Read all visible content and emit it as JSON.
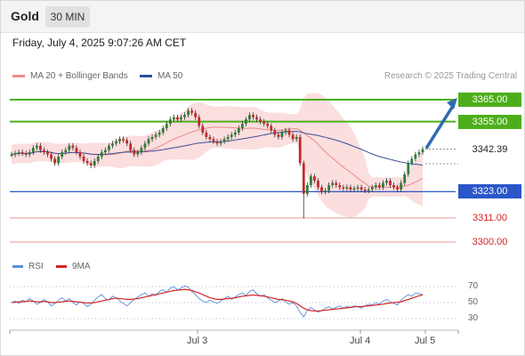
{
  "header": {
    "instrument": "Gold",
    "timeframe": "30 MIN"
  },
  "datetime": "Friday, July 4, 2025 9:07:26 AM CET",
  "legend": {
    "ma20": "MA 20 + Bollinger Bands",
    "ma50": "MA 50"
  },
  "credit": "Research © 2025 Trading Central",
  "colors": {
    "bullish": "#2e7d32",
    "bearish": "#c62828",
    "resistance": "#4caf1a",
    "support": "#2a56c8",
    "target": "#2f6ab0",
    "bollinger": "#f7c3c3",
    "ma20": "#e88a8a",
    "ma50": "#3b4f9a",
    "rsi": "#5b8fd6",
    "rsi_ma": "#d32525"
  },
  "chart_data": [
    {
      "type": "candlestick",
      "title": "Gold 30 MIN",
      "ylim": [
        3295,
        3370
      ],
      "x_ticks": [
        "Jul 3",
        "Jul 4",
        "Jul 5"
      ],
      "last_price": 3342.39,
      "levels": [
        {
          "value": 3365.0,
          "label": "3365.00",
          "kind": "resistance"
        },
        {
          "value": 3355.0,
          "label": "3355.00",
          "kind": "resistance"
        },
        {
          "value": 3342.39,
          "label": "3342.39",
          "kind": "last"
        },
        {
          "value": 3323.0,
          "label": "3323.00",
          "kind": "pivot"
        },
        {
          "value": 3311.0,
          "label": "3311.00",
          "kind": "support"
        },
        {
          "value": 3300.0,
          "label": "3300.00",
          "kind": "support"
        }
      ],
      "target_arrow": {
        "from": 3342.39,
        "to": 3365.0
      },
      "series": [
        {
          "name": "MA 20 + Bollinger Bands"
        },
        {
          "name": "MA 50"
        }
      ],
      "close": [
        3340.0,
        3340.5,
        3341.0,
        3340.5,
        3340.0,
        3341.0,
        3343.0,
        3344.0,
        3342.0,
        3341.0,
        3340.0,
        3338.0,
        3336.0,
        3339.0,
        3341.0,
        3342.0,
        3344.0,
        3343.0,
        3341.0,
        3339.0,
        3337.0,
        3336.0,
        3335.0,
        3337.0,
        3339.0,
        3341.0,
        3342.0,
        3344.0,
        3345.0,
        3346.0,
        3347.0,
        3346.5,
        3345.0,
        3342.0,
        3340.0,
        3341.0,
        3343.0,
        3345.0,
        3347.0,
        3348.0,
        3349.0,
        3350.0,
        3352.0,
        3354.0,
        3356.0,
        3357.0,
        3356.0,
        3357.0,
        3358.0,
        3360.0,
        3359.0,
        3357.0,
        3353.0,
        3350.0,
        3348.0,
        3347.0,
        3346.0,
        3345.0,
        3346.0,
        3347.0,
        3348.0,
        3349.0,
        3350.0,
        3352.0,
        3354.0,
        3356.0,
        3358.0,
        3357.0,
        3356.0,
        3355.0,
        3354.0,
        3353.0,
        3351.0,
        3349.0,
        3348.0,
        3350.0,
        3351.0,
        3349.0,
        3347.0,
        3348.0,
        3336.0,
        3322.0,
        3326.0,
        3330.0,
        3328.0,
        3325.0,
        3323.0,
        3323.5,
        3326.0,
        3327.0,
        3326.0,
        3325.0,
        3324.5,
        3325.0,
        3324.0,
        3324.5,
        3325.0,
        3324.0,
        3323.5,
        3324.0,
        3325.0,
        3326.0,
        3325.0,
        3327.0,
        3328.0,
        3326.0,
        3325.0,
        3324.0,
        3327.0,
        3331.0,
        3336.0,
        3338.0,
        3340.0,
        3341.0,
        3342.4
      ],
      "rsi_panel": {
        "series": [
          {
            "name": "RSI"
          },
          {
            "name": "9MA"
          }
        ],
        "ylim": [
          25,
          75
        ],
        "levels": [
          30,
          50,
          70
        ],
        "rsi": [
          50,
          52,
          49,
          53,
          51,
          55,
          52,
          48,
          50,
          54,
          51,
          46,
          49,
          53,
          56,
          52,
          55,
          50,
          47,
          51,
          49,
          45,
          48,
          53,
          57,
          60,
          55,
          53,
          58,
          56,
          52,
          49,
          46,
          50,
          54,
          57,
          60,
          62,
          58,
          61,
          59,
          64,
          66,
          63,
          68,
          70,
          66,
          68,
          71,
          69,
          64,
          60,
          55,
          52,
          50,
          53,
          51,
          49,
          52,
          55,
          58,
          54,
          57,
          60,
          62,
          59,
          64,
          66,
          61,
          58,
          60,
          56,
          53,
          50,
          52,
          55,
          51,
          48,
          50,
          46,
          38,
          32,
          40,
          44,
          41,
          38,
          40,
          43,
          45,
          42,
          44,
          46,
          43,
          45,
          44,
          46,
          45,
          43,
          46,
          48,
          47,
          50,
          48,
          52,
          54,
          51,
          49,
          47,
          53,
          57,
          60,
          58,
          62,
          61,
          60
        ],
        "rsi_ma": [
          50,
          50.5,
          51,
          51,
          51.5,
          52,
          51.5,
          51,
          51,
          51.5,
          51,
          50,
          50,
          50.5,
          51,
          51.5,
          52,
          51.5,
          51,
          50.5,
          50,
          49.5,
          49.5,
          50,
          51,
          52,
          53,
          54,
          55,
          55.5,
          55,
          54.5,
          54,
          54,
          54.5,
          55,
          56,
          57,
          58,
          59,
          60,
          61,
          62,
          63,
          64,
          65,
          65.5,
          66,
          66.5,
          66,
          65,
          63.5,
          62,
          60,
          58,
          56,
          55,
          54,
          54,
          54.5,
          55,
          55.5,
          56,
          57,
          58,
          58.5,
          59,
          59.5,
          59,
          58.5,
          58,
          57,
          56,
          55,
          54,
          53.5,
          53,
          52,
          51,
          49,
          46,
          43,
          41,
          40,
          39.5,
          39.5,
          40,
          40.5,
          41,
          41.5,
          42,
          42.5,
          43,
          43.5,
          44,
          44.5,
          45,
          45,
          45.5,
          46,
          46.5,
          47,
          47.5,
          48,
          49,
          49.5,
          50,
          50.5,
          51,
          52.5,
          54,
          55.5,
          57,
          58.5,
          59.5
        ]
      }
    }
  ]
}
